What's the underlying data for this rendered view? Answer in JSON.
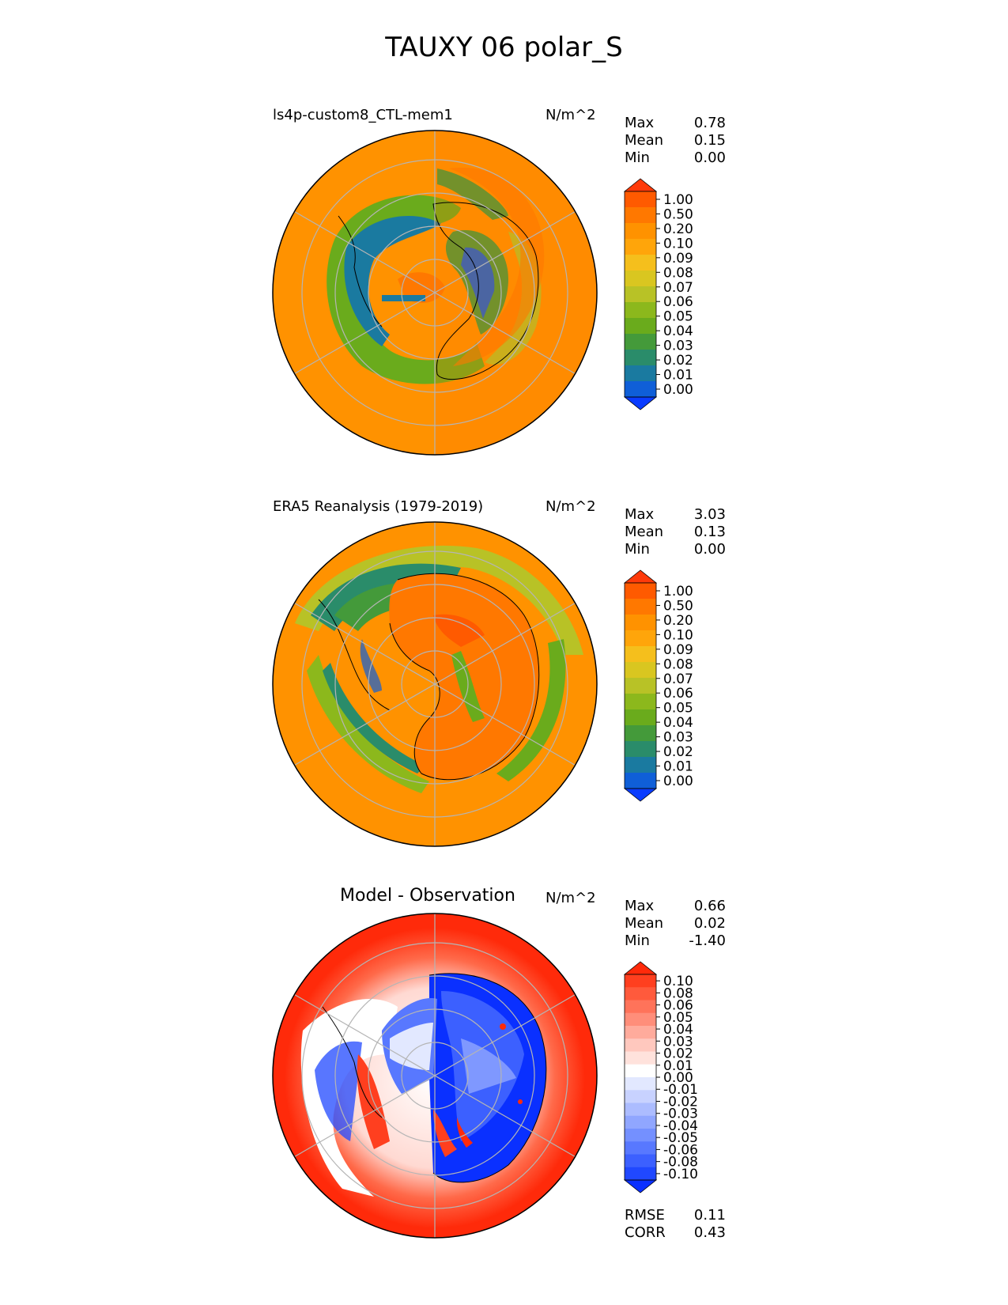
{
  "title": "TAUXY 06 polar_S",
  "chart_data": [
    {
      "type": "heatmap",
      "projection": "south polar stereographic",
      "title": "ls4p-custom8_CTL-mem1",
      "units": "N/m^2",
      "stats": [
        {
          "label": "Max",
          "value": "0.78"
        },
        {
          "label": "Mean",
          "value": "0.15"
        },
        {
          "label": "Min",
          "value": "0.00"
        }
      ],
      "colorbar": {
        "levels": [
          "1.00",
          "0.50",
          "0.20",
          "0.10",
          "0.09",
          "0.08",
          "0.07",
          "0.06",
          "0.05",
          "0.04",
          "0.03",
          "0.02",
          "0.01",
          "0.00"
        ],
        "colors": [
          "#ff3a0a",
          "#ff5a00",
          "#ff7800",
          "#ff9200",
          "#ffa50a",
          "#f5bf1c",
          "#d9c620",
          "#b8c226",
          "#8cb81c",
          "#6aab1c",
          "#449a3a",
          "#2a8c6a",
          "#1a7aa0",
          "#0f5fd8",
          "#0a3cff"
        ]
      }
    },
    {
      "type": "heatmap",
      "projection": "south polar stereographic",
      "title": "ERA5 Reanalysis (1979-2019)",
      "units": "N/m^2",
      "stats": [
        {
          "label": "Max",
          "value": "3.03"
        },
        {
          "label": "Mean",
          "value": "0.13"
        },
        {
          "label": "Min",
          "value": "0.00"
        }
      ],
      "colorbar": {
        "levels": [
          "1.00",
          "0.50",
          "0.20",
          "0.10",
          "0.09",
          "0.08",
          "0.07",
          "0.06",
          "0.05",
          "0.04",
          "0.03",
          "0.02",
          "0.01",
          "0.00"
        ],
        "colors": [
          "#ff3a0a",
          "#ff5a00",
          "#ff7800",
          "#ff9200",
          "#ffa50a",
          "#f5bf1c",
          "#d9c620",
          "#b8c226",
          "#8cb81c",
          "#6aab1c",
          "#449a3a",
          "#2a8c6a",
          "#1a7aa0",
          "#0f5fd8",
          "#0a3cff"
        ]
      }
    },
    {
      "type": "heatmap",
      "projection": "south polar stereographic",
      "title": "Model - Observation",
      "units": "N/m^2",
      "stats": [
        {
          "label": "Max",
          "value": "0.66"
        },
        {
          "label": "Mean",
          "value": "0.02"
        },
        {
          "label": "Min",
          "value": "-1.40"
        }
      ],
      "colorbar": {
        "levels": [
          "0.10",
          "0.08",
          "0.06",
          "0.05",
          "0.04",
          "0.03",
          "0.02",
          "0.01",
          "0.00",
          "-0.01",
          "-0.02",
          "-0.03",
          "-0.04",
          "-0.05",
          "-0.06",
          "-0.08",
          "-0.10"
        ],
        "colors": [
          "#ff2a0a",
          "#ff3f1f",
          "#ff5a3c",
          "#ff735a",
          "#ff8e7a",
          "#ffab9c",
          "#ffc8be",
          "#ffe2dc",
          "#ffffff",
          "#e2e8ff",
          "#c8d2ff",
          "#acbcff",
          "#90a6ff",
          "#7490ff",
          "#5878ff",
          "#3c60ff",
          "#2048ff",
          "#0a30ff"
        ]
      },
      "error_stats": [
        {
          "label": "RMSE",
          "value": "0.11"
        },
        {
          "label": "CORR",
          "value": "0.43"
        }
      ]
    }
  ]
}
